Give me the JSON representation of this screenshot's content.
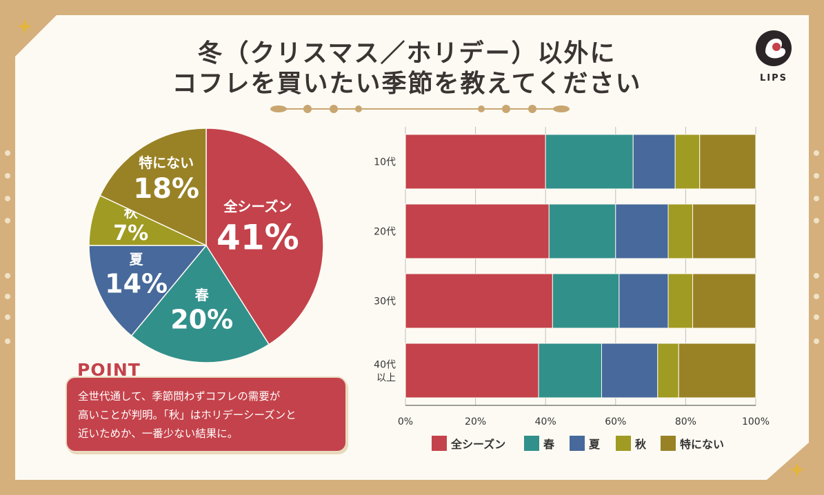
{
  "title": {
    "line1": "冬（クリスマス／ホリデー）以外に",
    "line2": "コフレを買いたい季節を教えてください"
  },
  "brand": {
    "name": "LIPS"
  },
  "colors": {
    "all_season": "#c4424b",
    "spring": "#32908b",
    "summer": "#47699b",
    "autumn": "#a09b22",
    "none": "#998226"
  },
  "chart_data": [
    {
      "type": "pie",
      "categories": [
        "全シーズン",
        "春",
        "夏",
        "秋",
        "特にない"
      ],
      "values": [
        41,
        20,
        14,
        7,
        18
      ],
      "value_labels": [
        "41%",
        "20%",
        "14%",
        "7%",
        "18%"
      ]
    },
    {
      "type": "bar",
      "orientation": "horizontal",
      "stacked": true,
      "categories": [
        "10代",
        "20代",
        "30代",
        "40代\n以上"
      ],
      "series": [
        {
          "name": "全シーズン",
          "values": [
            40,
            41,
            42,
            38
          ]
        },
        {
          "name": "春",
          "values": [
            25,
            19,
            19,
            18
          ]
        },
        {
          "name": "夏",
          "values": [
            12,
            15,
            14,
            16
          ]
        },
        {
          "name": "秋",
          "values": [
            7,
            7,
            7,
            6
          ]
        },
        {
          "name": "特にない",
          "values": [
            16,
            18,
            18,
            22
          ]
        }
      ],
      "xlim": [
        0,
        100
      ],
      "xticks": [
        "0%",
        "20%",
        "40%",
        "60%",
        "80%",
        "100%"
      ],
      "grid": true,
      "legend": "bottom"
    }
  ],
  "point": {
    "heading": "POINT",
    "lines": [
      "全世代通して、季節問わずコフレの需要が",
      "高いことが判明。「秋」はホリデーシーズンと",
      "近いためか、一番少ない結果に。"
    ]
  }
}
